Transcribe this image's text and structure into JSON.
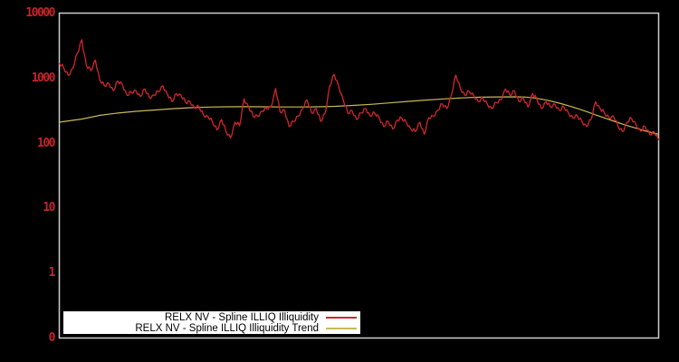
{
  "figure": {
    "background": "#000000",
    "border_color": "#cdcdcd"
  },
  "y_axis": {
    "scale": "log",
    "tick_labels": [
      "10000",
      "1000",
      "100",
      "10",
      "1",
      "0"
    ],
    "tick_values": [
      10000,
      1000,
      100,
      10,
      1,
      0.1
    ],
    "label_color": "#c6242a"
  },
  "legend": {
    "background": "#ffffff",
    "text_color": "#000000",
    "position": "bottom-center",
    "items": [
      {
        "label": "RELX NV - Spline ILLIQ Illiquidity",
        "color": "#d2262b"
      },
      {
        "label": "RELX NV - Spline ILLIQ Illiquidity Trend",
        "color": "#c9b858"
      }
    ]
  },
  "chart_data": {
    "type": "line",
    "title": "",
    "xlabel": "",
    "ylabel": "",
    "y_scale": "log",
    "ylim": [
      0.1,
      10000
    ],
    "x_axis_labels_visible": false,
    "grid": false,
    "legend_position": "bottom-center",
    "series": [
      {
        "name": "RELX NV - Spline ILLIQ Illiquidity",
        "color": "#d2262b",
        "style": "noisy",
        "render_jitter": [
          1.05,
          0.94,
          1.03,
          0.96,
          1.08,
          0.95
        ],
        "values": [
          1700,
          1420,
          1100,
          1420,
          2400,
          3900,
          1560,
          1300,
          1900,
          925,
          760,
          830,
          640,
          900,
          800,
          545,
          600,
          640,
          520,
          680,
          500,
          545,
          620,
          760,
          560,
          435,
          580,
          545,
          420,
          435,
          350,
          360,
          270,
          255,
          210,
          160,
          230,
          150,
          120,
          210,
          185,
          480,
          360,
          260,
          260,
          310,
          340,
          360,
          690,
          300,
          320,
          180,
          215,
          260,
          340,
          460,
          290,
          340,
          215,
          290,
          750,
          1140,
          750,
          465,
          290,
          315,
          230,
          290,
          340,
          260,
          290,
          245,
          180,
          215,
          165,
          225,
          240,
          210,
          165,
          150,
          210,
          137,
          245,
          260,
          320,
          400,
          340,
          545,
          1110,
          700,
          545,
          620,
          540,
          435,
          490,
          395,
          340,
          420,
          465,
          680,
          545,
          640,
          435,
          490,
          360,
          580,
          465,
          340,
          435,
          360,
          395,
          318,
          360,
          287,
          245,
          260,
          215,
          180,
          230,
          435,
          340,
          287,
          245,
          260,
          180,
          150,
          210,
          240,
          190,
          152,
          180,
          137,
          150,
          110
        ]
      },
      {
        "name": "RELX NV - Spline ILLIQ Illiquidity Trend",
        "color": "#c9b858",
        "style": "smooth",
        "points": [
          [
            0,
            210
          ],
          [
            0.038,
            235
          ],
          [
            0.068,
            268
          ],
          [
            0.098,
            290
          ],
          [
            0.128,
            308
          ],
          [
            0.158,
            322
          ],
          [
            0.189,
            338
          ],
          [
            0.219,
            350
          ],
          [
            0.249,
            358
          ],
          [
            0.279,
            362
          ],
          [
            0.309,
            363
          ],
          [
            0.339,
            362
          ],
          [
            0.37,
            360
          ],
          [
            0.4,
            360
          ],
          [
            0.43,
            362
          ],
          [
            0.46,
            368
          ],
          [
            0.49,
            380
          ],
          [
            0.52,
            395
          ],
          [
            0.551,
            415
          ],
          [
            0.581,
            437
          ],
          [
            0.611,
            458
          ],
          [
            0.641,
            478
          ],
          [
            0.671,
            495
          ],
          [
            0.701,
            508
          ],
          [
            0.732,
            513
          ],
          [
            0.762,
            515
          ],
          [
            0.777,
            512
          ],
          [
            0.792,
            495
          ],
          [
            0.807,
            470
          ],
          [
            0.822,
            440
          ],
          [
            0.837,
            405
          ],
          [
            0.852,
            370
          ],
          [
            0.867,
            335
          ],
          [
            0.882,
            300
          ],
          [
            0.897,
            268
          ],
          [
            0.912,
            240
          ],
          [
            0.928,
            213
          ],
          [
            0.943,
            192
          ],
          [
            0.958,
            174
          ],
          [
            0.973,
            158
          ],
          [
            0.988,
            145
          ],
          [
            1,
            136
          ]
        ]
      }
    ]
  }
}
